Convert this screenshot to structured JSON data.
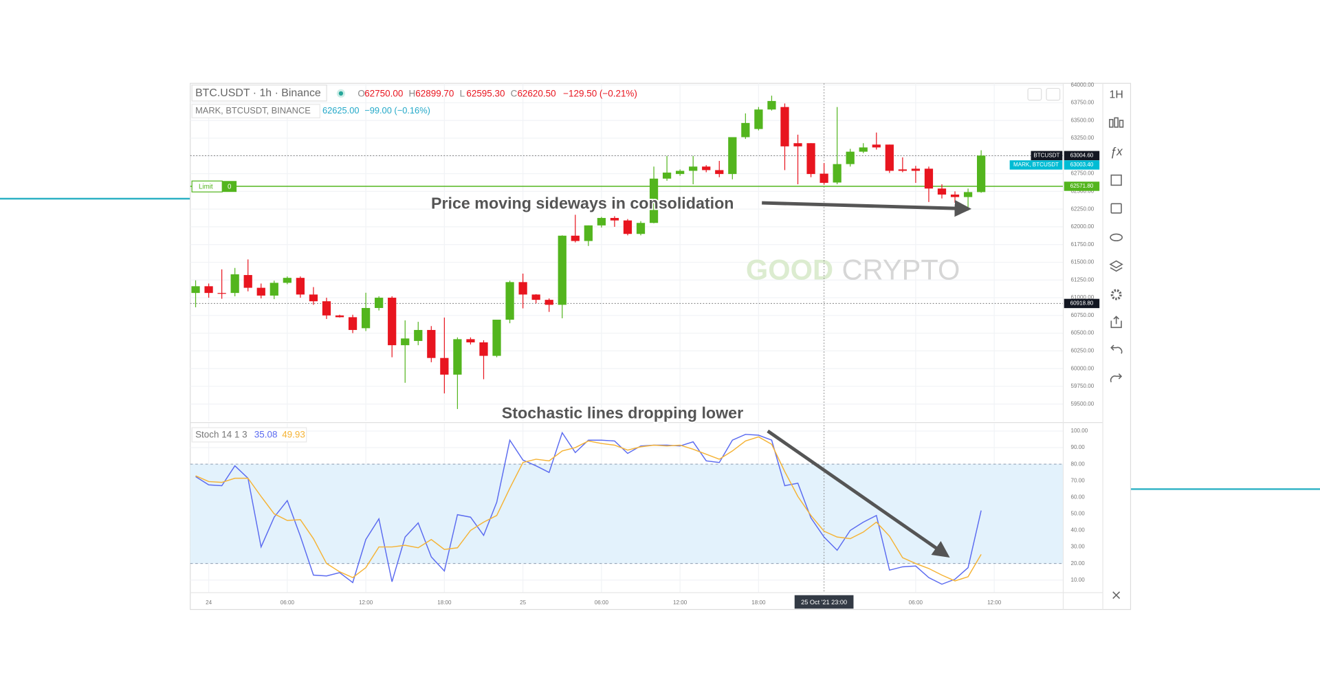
{
  "chart_data": [
    {
      "type": "candlestick",
      "title": "BTC.USDT · 1h · Binance",
      "ohlc_legend": [
        {
          "label": "O",
          "value": "62750.00"
        },
        {
          "label": "H",
          "value": "62899.70"
        },
        {
          "label": "L",
          "value": "62595.30"
        },
        {
          "label": "C",
          "value": "62620.50"
        }
      ],
      "change": "−129.50 (−0.21%)",
      "mark_legend": {
        "title": "MARK, BTCUSDT, BINANCE",
        "value": "62625.00",
        "change": "−99.00 (−0.16%)"
      },
      "up_color": "#53b51e",
      "down_color": "#e8151f",
      "x": [
        -1,
        0,
        1,
        2,
        3,
        4,
        5,
        6,
        7,
        8,
        9,
        10,
        11,
        12,
        13,
        14,
        15,
        16,
        17,
        18,
        19,
        20,
        21,
        22,
        23,
        24,
        25,
        26,
        27,
        28,
        29,
        30,
        31,
        32,
        33,
        34,
        35,
        36,
        37,
        38,
        39,
        40,
        41,
        42,
        43,
        44,
        45,
        46,
        47,
        48,
        49,
        50,
        51,
        52,
        53,
        54,
        55,
        56,
        57,
        58,
        59
      ],
      "open": [
        61067,
        61162,
        61067,
        61067,
        61320,
        61140,
        61030,
        61210,
        61280,
        61045,
        60950,
        60750,
        60725,
        60570,
        60855,
        61000,
        60330,
        60390,
        60545,
        60150,
        59915,
        60415,
        60370,
        60180,
        60690,
        61220,
        61045,
        60970,
        60900,
        61875,
        61800,
        62020,
        62125,
        62090,
        61900,
        62055,
        62680,
        62745,
        62790,
        62850,
        62800,
        62745,
        63265,
        63380,
        63655,
        63690,
        63180,
        63180,
        62750,
        62625,
        62885,
        63060,
        63160,
        63160,
        62810,
        62820,
        62820,
        62540,
        62455,
        62420,
        62490
      ],
      "high": [
        61245,
        61200,
        61400,
        61420,
        61540,
        61200,
        61240,
        61300,
        61300,
        61150,
        61000,
        60760,
        60760,
        61070,
        61020,
        61020,
        60680,
        60660,
        60600,
        60720,
        60440,
        60440,
        60400,
        60690,
        61240,
        61340,
        61050,
        60990,
        61880,
        62170,
        62020,
        62140,
        62150,
        62110,
        62080,
        62850,
        63000,
        62810,
        63000,
        62870,
        62930,
        63265,
        63600,
        63690,
        63850,
        63740,
        63300,
        63180,
        62899.7,
        63690,
        63100,
        63180,
        63330,
        63160,
        62980,
        62860,
        62850,
        62600,
        62500,
        62540,
        63080
      ],
      "low": [
        60865,
        61000,
        60985,
        61020,
        61090,
        60990,
        60980,
        61190,
        61000,
        60900,
        60700,
        60720,
        60500,
        60530,
        60820,
        60160,
        59800,
        60330,
        60090,
        59650,
        59430,
        60340,
        59850,
        60160,
        60640,
        60850,
        60920,
        60800,
        60710,
        61780,
        61730,
        61990,
        62000,
        61880,
        61880,
        62050,
        62650,
        62720,
        62600,
        62770,
        62700,
        62670,
        63240,
        63360,
        63640,
        62800,
        62600,
        62700,
        62595.3,
        62600,
        62850,
        63040,
        63090,
        62760,
        62770,
        62620,
        62350,
        62400,
        62340,
        62230,
        62480
      ],
      "close": [
        61162,
        61067,
        61060,
        61330,
        61140,
        61030,
        61210,
        61280,
        61045,
        60950,
        60750,
        60725,
        60545,
        60855,
        61000,
        60330,
        60425,
        60545,
        60150,
        59915,
        60415,
        60370,
        60180,
        60690,
        61220,
        61045,
        60970,
        60900,
        61875,
        61800,
        62020,
        62125,
        62090,
        61900,
        62055,
        62680,
        62765,
        62790,
        62850,
        62800,
        62745,
        63265,
        63465,
        63655,
        63775,
        63135,
        63135,
        62745,
        62620.5,
        62885,
        63060,
        63120,
        63120,
        62790,
        62790,
        62790,
        62540,
        62455,
        62420,
        62490,
        63005
      ],
      "xlim": [
        -1.41,
        65.27
      ],
      "xticks": [
        {
          "value": 0,
          "label": "24"
        },
        {
          "value": 6,
          "label": "06:00"
        },
        {
          "value": 12,
          "label": "12:00"
        },
        {
          "value": 18,
          "label": "18:00"
        },
        {
          "value": 24,
          "label": "25"
        },
        {
          "value": 30,
          "label": "06:00"
        },
        {
          "value": 36,
          "label": "12:00"
        },
        {
          "value": 42,
          "label": "18:00"
        },
        {
          "value": 54,
          "label": "06:00"
        },
        {
          "value": 60,
          "label": "12:00"
        }
      ],
      "ylim": [
        59262,
        64024
      ],
      "yticks": [
        {
          "value": 64000,
          "label": "64000.00"
        },
        {
          "value": 63750,
          "label": "63750.00"
        },
        {
          "value": 63500,
          "label": "63500.00"
        },
        {
          "value": 63250,
          "label": "63250.00"
        },
        {
          "value": 63000,
          "label": "63000.00"
        },
        {
          "value": 62750,
          "label": "62750.00"
        },
        {
          "value": 62500,
          "label": "62500.00"
        },
        {
          "value": 62250,
          "label": "62250.00"
        },
        {
          "value": 62000,
          "label": "62000.00"
        },
        {
          "value": 61750,
          "label": "61750.00"
        },
        {
          "value": 61500,
          "label": "61500.00"
        },
        {
          "value": 61250,
          "label": "61250.00"
        },
        {
          "value": 61000,
          "label": "61000.00"
        },
        {
          "value": 60750,
          "label": "60750.00"
        },
        {
          "value": 60500,
          "label": "60500.00"
        },
        {
          "value": 60250,
          "label": "60250.00"
        },
        {
          "value": 60000,
          "label": "60000.00"
        },
        {
          "value": 59750,
          "label": "59750.00"
        },
        {
          "value": 59500,
          "label": "59500.00"
        }
      ],
      "grid": true,
      "price_labels": [
        {
          "name": "BTCUSDT",
          "value": 63004.6,
          "label": "63004.60",
          "color": "#131722",
          "line": "dotted"
        },
        {
          "name": "MARK, BTCUSDT",
          "value": 63003.4,
          "label": "63003.40",
          "color": "#00bcd4"
        },
        {
          "value": 62571.8,
          "label": "62571.80",
          "color": "#53b51e",
          "line": "solid"
        },
        {
          "value": 60918.8,
          "label": "60918.80",
          "color": "#131722",
          "line": "dotted"
        }
      ],
      "limit": {
        "label": "Limit",
        "value": "0"
      },
      "crosshair": {
        "x": 47,
        "label": "25 Oct '21  23:00"
      },
      "annotation": "Price moving sideways in consolidation"
    },
    {
      "type": "line",
      "title": "Stoch 14 1 3",
      "x": [
        -1,
        0,
        1,
        2,
        3,
        4,
        5,
        6,
        7,
        8,
        9,
        10,
        11,
        12,
        13,
        14,
        15,
        16,
        17,
        18,
        19,
        20,
        21,
        22,
        23,
        24,
        25,
        26,
        27,
        28,
        29,
        30,
        31,
        32,
        33,
        34,
        35,
        36,
        37,
        38,
        39,
        40,
        41,
        42,
        43,
        44,
        45,
        46,
        47,
        48,
        49,
        50,
        51,
        52,
        53,
        54,
        55,
        56,
        57,
        58,
        59
      ],
      "series": [
        {
          "color": "#5b6bf0",
          "value_label": "35.08",
          "values": [
            72.5,
            67.5,
            67,
            79,
            71.5,
            30,
            48,
            58,
            36.5,
            13,
            12.5,
            14.5,
            8.5,
            34.5,
            47,
            9,
            36,
            44.5,
            24,
            15.5,
            49.5,
            48,
            37,
            57,
            94.5,
            82.5,
            79,
            75,
            99,
            87,
            94.5,
            94.5,
            94,
            86.5,
            91,
            91.5,
            91.5,
            91,
            93.5,
            82,
            81,
            94.5,
            98,
            97.5,
            94.5,
            67,
            68.5,
            47.5,
            36,
            28,
            40,
            45,
            49,
            16,
            18,
            18.5,
            11.5,
            7.5,
            10.5,
            17.5,
            52
          ]
        },
        {
          "color": "#f5b335",
          "value_label": "49.93",
          "values": [
            73,
            69.5,
            69,
            71.5,
            71.5,
            60.5,
            50,
            46,
            46.5,
            35,
            20,
            15,
            11.5,
            17.5,
            30,
            30,
            31,
            29.5,
            34.5,
            28.5,
            29.5,
            40,
            45,
            49,
            65.5,
            81,
            83,
            82,
            88,
            90,
            94,
            92.5,
            91.5,
            88.5,
            90.5,
            91.5,
            91,
            91.5,
            89,
            86,
            83,
            88,
            94,
            96.5,
            92,
            75.5,
            60.5,
            49,
            39.5,
            36,
            35,
            39,
            45,
            36.5,
            23.5,
            20,
            17,
            13,
            9.5,
            12,
            25.5
          ]
        }
      ],
      "xlim": [
        -1.41,
        65.27
      ],
      "ylim": [
        2.4,
        104.6
      ],
      "yticks": [
        {
          "value": 100,
          "label": "100.00"
        },
        {
          "value": 90,
          "label": "90.00"
        },
        {
          "value": 80,
          "label": "80.00"
        },
        {
          "value": 70,
          "label": "70.00"
        },
        {
          "value": 60,
          "label": "60.00"
        },
        {
          "value": 50,
          "label": "50.00"
        },
        {
          "value": 40,
          "label": "40.00"
        },
        {
          "value": 30,
          "label": "30.00"
        },
        {
          "value": 20,
          "label": "20.00"
        },
        {
          "value": 10,
          "label": "10.00"
        }
      ],
      "bands": [
        20,
        80
      ],
      "band_color": "#e3f2fc",
      "grid": true,
      "annotation": "Stochastic lines dropping lower"
    }
  ],
  "ui": {
    "watermark": [
      "GOOD",
      "CRYPTO"
    ],
    "toolbar": {
      "interval": "1H",
      "fx": "ƒx"
    }
  }
}
